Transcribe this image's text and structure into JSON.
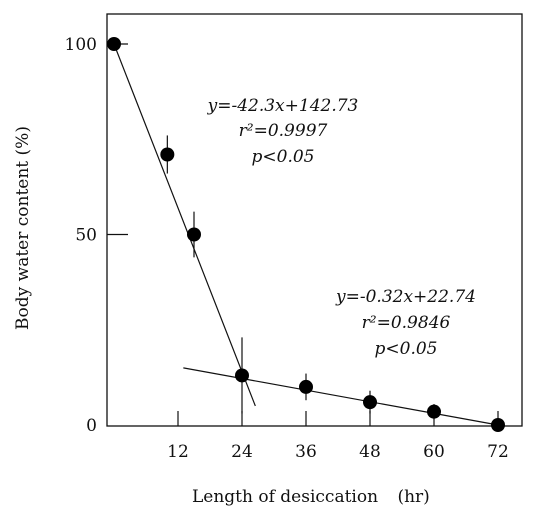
{
  "chart_data": {
    "type": "scatter",
    "xlabel": "Length of desiccation",
    "xunit": "(hr)",
    "ylabel": "Body water content (%)",
    "xlim": [
      0,
      75
    ],
    "ylim": [
      0,
      100
    ],
    "xticks": [
      12,
      24,
      36,
      48,
      60,
      72
    ],
    "xtick_labels": [
      "12",
      "24",
      "36",
      "48",
      "60",
      "72"
    ],
    "yticks": [
      0,
      50,
      100
    ],
    "ytick_labels": [
      "0",
      "50",
      "100"
    ],
    "grid": false,
    "points": [
      {
        "x": 0,
        "y": 100,
        "err": 0
      },
      {
        "x": 10,
        "y": 71,
        "err": 5
      },
      {
        "x": 15,
        "y": 50,
        "err": 6
      },
      {
        "x": 24,
        "y": 13,
        "err": 10
      },
      {
        "x": 36,
        "y": 10,
        "err": 3.5
      },
      {
        "x": 48,
        "y": 6,
        "err": 3
      },
      {
        "x": 60,
        "y": 3.5,
        "err": 2
      },
      {
        "x": 72,
        "y": 0,
        "err": 0
      }
    ],
    "fit_lines": [
      {
        "equation": "y=-42.3x+142.73",
        "r2_label": "r²=0.9997",
        "p_label": "p<0.05",
        "x_start": 0,
        "y_start": 100,
        "x_end": 26.5,
        "y_end": 5
      },
      {
        "equation": "y=-0.32x+22.74",
        "r2_label": "r²=0.9846",
        "p_label": "p<0.05",
        "x_start": 13,
        "y_start": 15,
        "x_end": 72,
        "y_end": 0
      }
    ]
  }
}
